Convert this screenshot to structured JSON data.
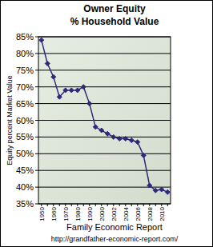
{
  "chart_data": {
    "type": "line",
    "title": "Owner Equity",
    "subtitle": "% Household Value",
    "y_label": "Equity percent Market Value",
    "annotations": [
      "Family Economic Report",
      "http://grandfather-economic-report.com/"
    ],
    "categories": [
      "1950",
      null,
      "1960",
      null,
      "1970",
      null,
      "1980",
      null,
      "1990",
      null,
      "2000",
      null,
      "2002",
      null,
      "2004",
      null,
      "2006",
      null,
      "2008",
      null,
      "2010",
      null
    ],
    "series": [
      {
        "name": "Owner Equity",
        "color": "#2e2a7a",
        "marker": "diamond",
        "values": [
          84,
          77,
          73,
          67,
          69,
          69,
          69,
          70,
          65,
          58,
          57,
          56,
          55,
          54.5,
          54.5,
          54,
          53.5,
          49.5,
          40.5,
          39,
          39.3,
          38.5
        ]
      }
    ],
    "ylim": [
      35,
      85
    ],
    "yticks": [
      {
        "value": 35,
        "label": "35%"
      },
      {
        "value": 40,
        "label": "40%"
      },
      {
        "value": 45,
        "label": "45%"
      },
      {
        "value": 50,
        "label": "50%"
      },
      {
        "value": 55,
        "label": "55%"
      },
      {
        "value": 60,
        "label": "60%"
      },
      {
        "value": 65,
        "label": "65%"
      },
      {
        "value": 70,
        "label": "70%"
      },
      {
        "value": 75,
        "label": "75%"
      },
      {
        "value": 80,
        "label": "80%"
      },
      {
        "value": 85,
        "label": "85%"
      }
    ],
    "grid": true
  }
}
